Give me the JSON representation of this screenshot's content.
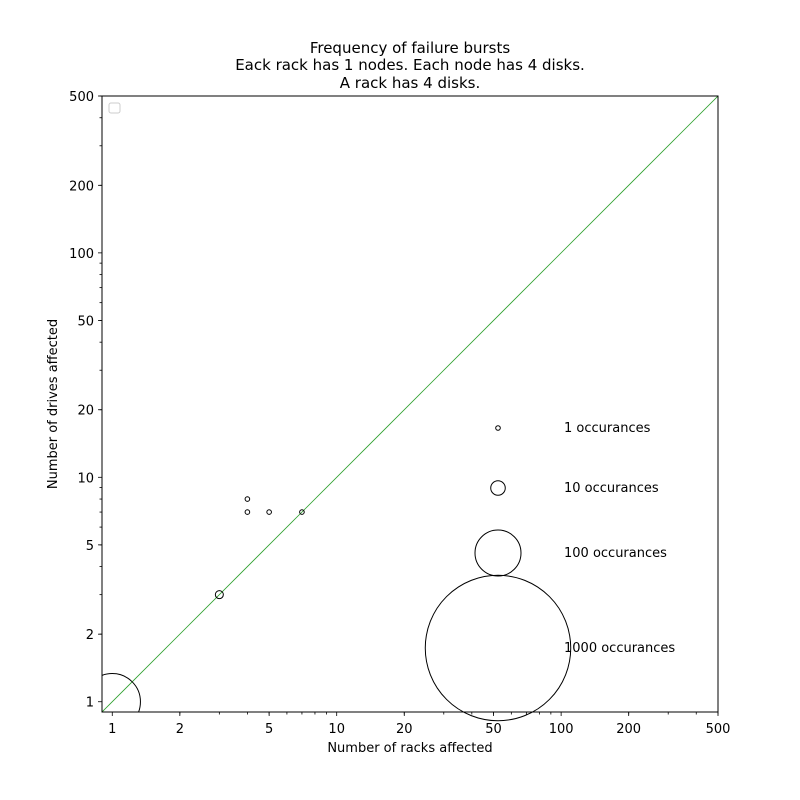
{
  "chart_data": {
    "type": "scatter",
    "title": "Frequency of failure bursts",
    "subtitle": [
      "Eack rack has 1 nodes. Each node has 4 disks.",
      "A rack has 4 disks."
    ],
    "xlabel": "Number of racks affected",
    "ylabel": "Number of drives affected",
    "x_scale": "log",
    "y_scale": "log",
    "xlim": [
      0.9,
      500
    ],
    "ylim": [
      0.9,
      500
    ],
    "x_ticks": [
      1,
      2,
      5,
      10,
      20,
      50,
      100,
      200,
      500
    ],
    "x_tick_labels": [
      "1",
      "2",
      "5",
      "10",
      "20",
      "50",
      "100",
      "200",
      "500"
    ],
    "y_ticks": [
      1,
      2,
      5,
      10,
      20,
      50,
      100,
      200,
      500
    ],
    "y_tick_labels": [
      "1",
      "2",
      "5",
      "10",
      "20",
      "50",
      "100",
      "200",
      "500"
    ],
    "reference_line": {
      "kind": "y=x",
      "color": "#2ca02c"
    },
    "points": [
      {
        "x": 1,
        "y": 1,
        "count": 150
      },
      {
        "x": 3,
        "y": 3,
        "count": 3
      },
      {
        "x": 4,
        "y": 8,
        "count": 1
      },
      {
        "x": 4,
        "y": 7,
        "count": 1
      },
      {
        "x": 5,
        "y": 7,
        "count": 1
      },
      {
        "x": 7,
        "y": 7,
        "count": 1
      }
    ],
    "size_legend": [
      {
        "count": 1,
        "label": "1 occurances"
      },
      {
        "count": 10,
        "label": "10 occurances"
      },
      {
        "count": 100,
        "label": "100 occurances"
      },
      {
        "count": 1000,
        "label": "1000 occurances"
      }
    ],
    "grid": false,
    "legend_placement": "upper-left (empty)"
  }
}
